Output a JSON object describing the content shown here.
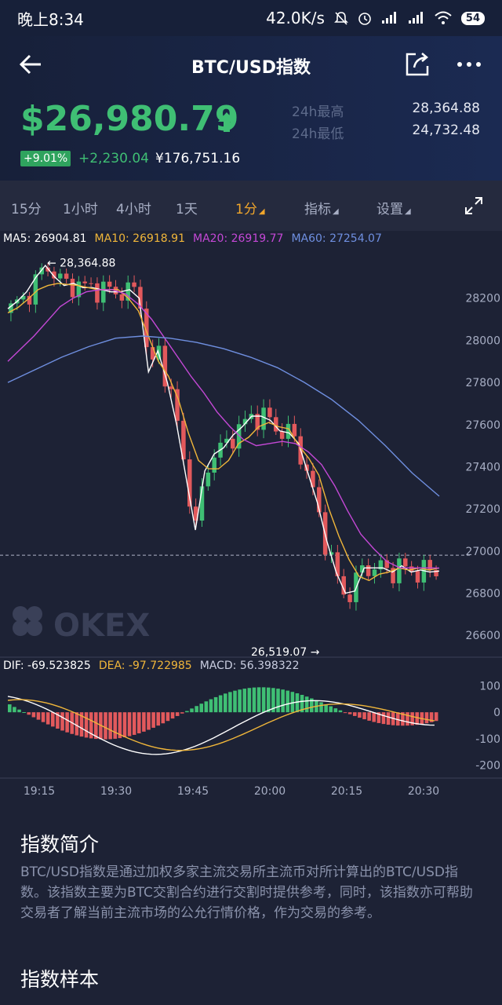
{
  "status": {
    "time": "晚上8:34",
    "speed": "42.0K/s",
    "battery": "54"
  },
  "nav": {
    "title": "BTC/USD指数"
  },
  "price": {
    "last": "$26,980.79",
    "change_pct": "+9.01%",
    "change_abs": "+2,230.04",
    "cny": "¥176,751.16",
    "high_label": "24h最高",
    "high": "28,364.88",
    "low_label": "24h最低",
    "low": "24,732.48"
  },
  "timebar": {
    "items": [
      "15分",
      "1小时",
      "4小时",
      "1天",
      "1分",
      "指标",
      "设置"
    ],
    "active": "1分"
  },
  "ma": {
    "ma5": "MA5: 26904.81",
    "ma10": "MA10: 26918.91",
    "ma20": "MA20: 26919.77",
    "ma60": "MA60: 27254.07"
  },
  "macd": {
    "dif": "DIF: -69.523825",
    "dea": "DEA: -97.722985",
    "macd": "MACD: 56.398322"
  },
  "colors": {
    "up": "#3fbf74",
    "down": "#e2595c",
    "ma5": "#ffffff",
    "ma10": "#f0b63a",
    "ma20": "#c448d6",
    "ma60": "#6f8fe0",
    "active": "#f0a52b"
  },
  "watermark": "OKEX",
  "chart_data": {
    "type": "candlestick",
    "price_axis": {
      "ticks": [
        28200,
        28000,
        27800,
        27600,
        27400,
        27200,
        27000,
        26800,
        26600
      ],
      "range": [
        26500,
        28430
      ]
    },
    "macd_axis": {
      "ticks": [
        100,
        0,
        -100,
        -200
      ],
      "range": [
        -240,
        140
      ]
    },
    "time_labels": [
      "19:15",
      "19:30",
      "19:45",
      "20:00",
      "20:15",
      "20:30"
    ],
    "max_label": "28,364.88",
    "min_label": "26,519.07",
    "last_price_line": 26980,
    "series": [
      {
        "name": "MA5",
        "values": [
          28150,
          28185,
          28230,
          28300,
          28355,
          28300,
          28260,
          28270,
          28250,
          28250,
          28240,
          28230,
          28230,
          28240,
          28200,
          27850,
          27950,
          27800,
          27600,
          27350,
          27100,
          27380,
          27460,
          27490,
          27550,
          27590,
          27640,
          27640,
          27620,
          27570,
          27560,
          27510,
          27370,
          27230,
          27050,
          26900,
          26800,
          26810,
          26920,
          26920,
          26920,
          26900,
          26930,
          26900,
          26910,
          26900,
          26905
        ]
      },
      {
        "name": "MA10",
        "values": [
          28130,
          28155,
          28195,
          28240,
          28260,
          28270,
          28265,
          28260,
          28250,
          28240,
          28240,
          28240,
          28200,
          28140,
          28020,
          27900,
          27830,
          27720,
          27560,
          27430,
          27390,
          27390,
          27430,
          27510,
          27540,
          27590,
          27610,
          27590,
          27580,
          27500,
          27440,
          27360,
          27200,
          27070,
          26960,
          26880,
          26860,
          26890,
          26900,
          26920,
          26910,
          26920,
          26910,
          26919
        ]
      },
      {
        "name": "MA20",
        "values": [
          27900,
          27960,
          28020,
          28090,
          28160,
          28200,
          28230,
          28240,
          28240,
          28220,
          28170,
          28100,
          28010,
          27920,
          27830,
          27750,
          27660,
          27590,
          27530,
          27500,
          27510,
          27520,
          27510,
          27470,
          27410,
          27310,
          27190,
          27080,
          27010,
          26950,
          26920,
          26920,
          26920,
          26919
        ]
      },
      {
        "name": "MA60",
        "values": [
          27800,
          27860,
          27920,
          27970,
          28010,
          28020,
          28010,
          27990,
          27960,
          27920,
          27870,
          27800,
          27720,
          27620,
          27500,
          27370,
          27260
        ]
      }
    ]
  }
}
